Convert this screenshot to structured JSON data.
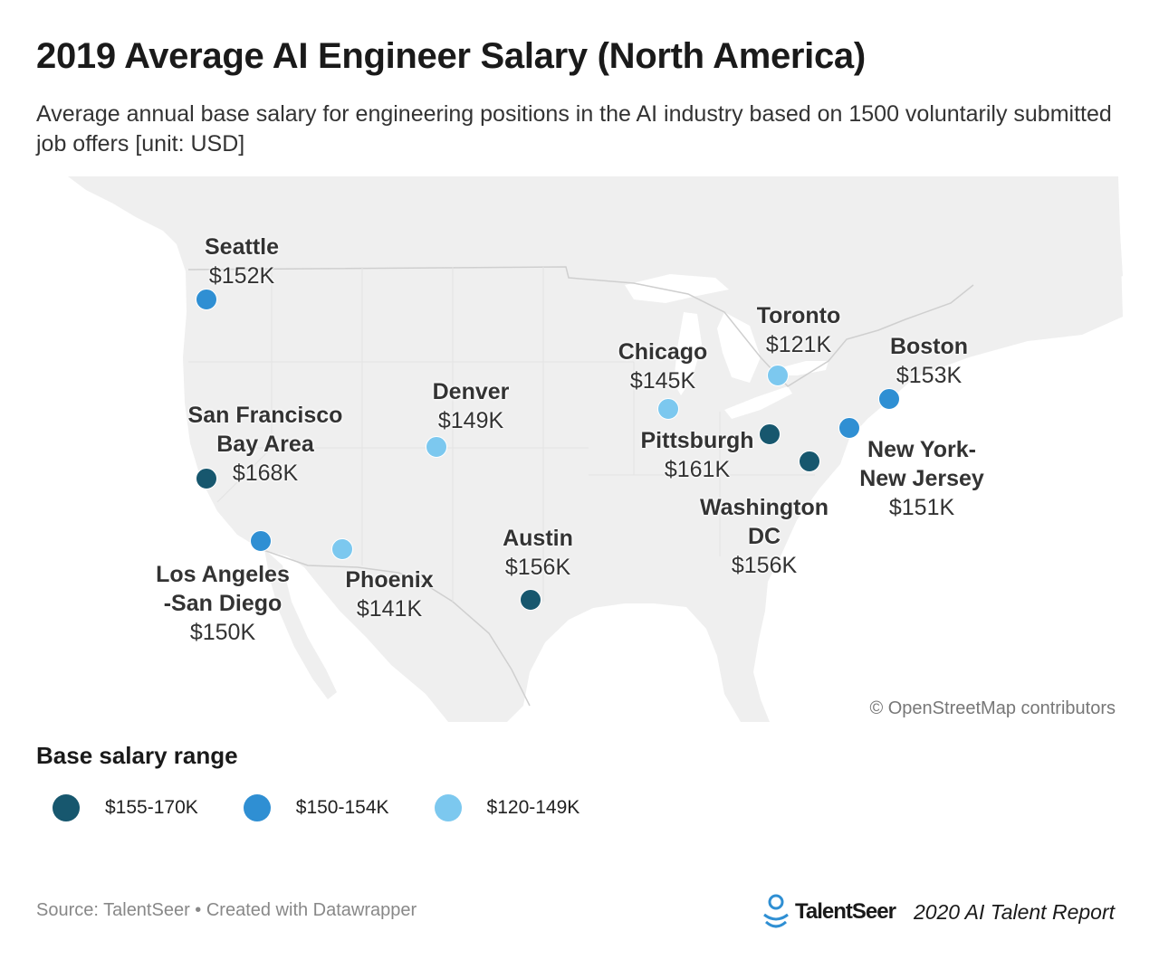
{
  "header": {
    "title": "2019 Average AI Engineer Salary (North America)",
    "subtitle": "Average annual base salary for engineering positions in the AI industry based on 1500 voluntarily submitted job offers [unit: USD]"
  },
  "map": {
    "attribution": "© OpenStreetMap contributors",
    "colors": {
      "land": "#efefef",
      "border": "#cfcfcf",
      "water": "#ffffff"
    }
  },
  "cities": [
    {
      "name": "Seattle",
      "value": "$152K",
      "range": "mid"
    },
    {
      "name": "San Francisco\nBay Area",
      "value": "$168K",
      "range": "high"
    },
    {
      "name": "Los Angeles\n-San Diego",
      "value": "$150K",
      "range": "mid"
    },
    {
      "name": "Phoenix",
      "value": "$141K",
      "range": "low"
    },
    {
      "name": "Denver",
      "value": "$149K",
      "range": "low"
    },
    {
      "name": "Austin",
      "value": "$156K",
      "range": "high"
    },
    {
      "name": "Chicago",
      "value": "$145K",
      "range": "low"
    },
    {
      "name": "Toronto",
      "value": "$121K",
      "range": "low"
    },
    {
      "name": "Pittsburgh",
      "value": "$161K",
      "range": "high"
    },
    {
      "name": "Washington\nDC",
      "value": "$156K",
      "range": "high"
    },
    {
      "name": "Boston",
      "value": "$153K",
      "range": "mid"
    },
    {
      "name": "New York-\nNew Jersey",
      "value": "$151K",
      "range": "mid"
    }
  ],
  "legend": {
    "title": "Base salary range",
    "items": [
      {
        "key": "high",
        "label": "$155-170K",
        "color": "#17576e"
      },
      {
        "key": "mid",
        "label": "$150-154K",
        "color": "#2f8fd3"
      },
      {
        "key": "low",
        "label": "$120-149K",
        "color": "#7cc8ef"
      }
    ]
  },
  "footer": {
    "source": "Source: TalentSeer • Created with Datawrapper",
    "brand": "TalentSeer",
    "report": "2020 AI Talent Report"
  }
}
